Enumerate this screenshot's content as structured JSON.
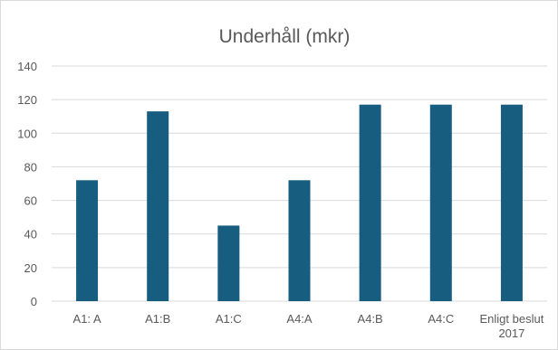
{
  "chart_data": {
    "type": "bar",
    "title": "Underhåll (mkr)",
    "xlabel": "",
    "ylabel": "",
    "categories": [
      [
        "A1: A"
      ],
      [
        "A1:B"
      ],
      [
        "A1:C"
      ],
      [
        "A4:A"
      ],
      [
        "A4:B"
      ],
      [
        "A4:C"
      ],
      [
        "Enligt beslut",
        "2017"
      ]
    ],
    "values": [
      72,
      113,
      45,
      72,
      117,
      117,
      117
    ],
    "ylim": [
      0,
      140
    ],
    "yticks": [
      0,
      20,
      40,
      60,
      80,
      100,
      120,
      140
    ],
    "grid": true,
    "legend": "none",
    "colors": {
      "bar": "#165d80",
      "grid": "#d9d9d9",
      "text": "#595959"
    }
  }
}
